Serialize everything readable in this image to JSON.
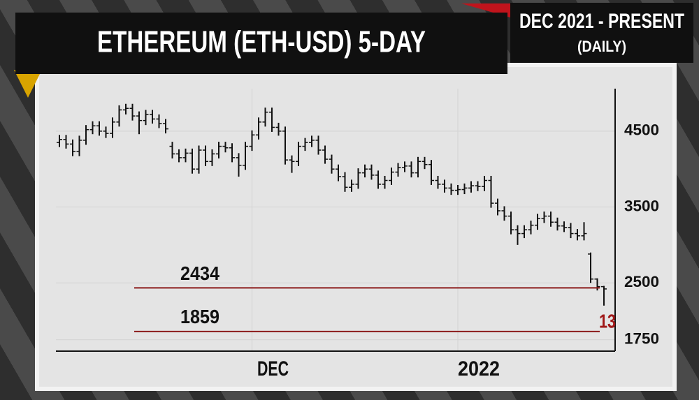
{
  "chart_data": {
    "type": "ohlc",
    "title": "ETHEREUM (ETH-USD) 5-DAY",
    "period": "DEC 2021 - PRESENT",
    "frequency": "(DAILY)",
    "categories": [
      null,
      null,
      null,
      null,
      null,
      null,
      null,
      null,
      null,
      null,
      null,
      null,
      null,
      null,
      null,
      null,
      null,
      null,
      null,
      null,
      null,
      null,
      null,
      null,
      null,
      null,
      null,
      null,
      null,
      "DEC",
      null,
      null,
      null,
      null,
      null,
      null,
      null,
      null,
      null,
      null,
      null,
      null,
      null,
      null,
      null,
      null,
      null,
      null,
      null,
      null,
      null,
      null,
      null,
      null,
      null,
      null,
      null,
      null,
      null,
      null,
      "2022",
      null,
      null,
      null,
      null,
      null,
      null,
      null,
      null,
      null,
      null,
      null,
      null,
      null,
      null,
      null,
      null,
      null,
      null,
      null,
      null,
      null,
      null
    ],
    "open": [
      4350,
      4390,
      4330,
      4230,
      4380,
      4520,
      4570,
      4500,
      4470,
      4620,
      4780,
      4800,
      4700,
      4640,
      4720,
      4660,
      4600,
      4300,
      4200,
      4150,
      4210,
      4000,
      4250,
      4100,
      4200,
      4300,
      4280,
      4150,
      4050,
      4300,
      4450,
      4620,
      4750,
      4550,
      4500,
      4120,
      4100,
      4300,
      4350,
      4380,
      4250,
      4130,
      4000,
      3900,
      3760,
      3800,
      3950,
      4000,
      3920,
      3800,
      3850,
      3960,
      4020,
      4040,
      3950,
      4100,
      4060,
      3850,
      3800,
      3750,
      3720,
      3730,
      3750,
      3780,
      3770,
      3850,
      3550,
      3450,
      3380,
      3200,
      3150,
      3200,
      3260,
      3350,
      3380,
      3300,
      3250,
      3230,
      3150,
      3120,
      2880,
      2550,
      2450
    ],
    "high": [
      4450,
      4450,
      4390,
      4440,
      4580,
      4630,
      4630,
      4560,
      4680,
      4840,
      4860,
      4860,
      4760,
      4780,
      4780,
      4720,
      4660,
      4360,
      4260,
      4270,
      4270,
      4310,
      4310,
      4260,
      4360,
      4360,
      4340,
      4210,
      4360,
      4510,
      4680,
      4810,
      4810,
      4610,
      4560,
      4180,
      4360,
      4410,
      4440,
      4440,
      4310,
      4190,
      4060,
      3960,
      3860,
      4010,
      4060,
      4060,
      3980,
      3910,
      4020,
      4080,
      4100,
      4100,
      4160,
      4160,
      4120,
      3910,
      3860,
      3810,
      3790,
      3810,
      3840,
      3840,
      3910,
      3910,
      3610,
      3510,
      3440,
      3260,
      3260,
      3320,
      3410,
      3440,
      3440,
      3360,
      3310,
      3290,
      3210,
      3300,
      2900,
      2560,
      2460
    ],
    "low": [
      4290,
      4270,
      4170,
      4170,
      4320,
      4460,
      4440,
      4410,
      4410,
      4560,
      4720,
      4640,
      4460,
      4580,
      4600,
      4540,
      4470,
      4140,
      4090,
      4090,
      3940,
      3940,
      4040,
      4040,
      4140,
      4220,
      4090,
      3900,
      3990,
      4240,
      4390,
      4560,
      4490,
      4440,
      4060,
      3950,
      4040,
      4240,
      4290,
      4190,
      4070,
      3940,
      3840,
      3700,
      3700,
      3740,
      3890,
      3860,
      3740,
      3740,
      3790,
      3900,
      3960,
      3890,
      3890,
      4000,
      3790,
      3740,
      3690,
      3660,
      3660,
      3670,
      3690,
      3710,
      3710,
      3490,
      3390,
      3320,
      3140,
      3000,
      3090,
      3140,
      3200,
      3290,
      3240,
      3190,
      3170,
      3090,
      3060,
      3060,
      2500,
      2400,
      2200
    ],
    "close": [
      4390,
      4330,
      4230,
      4380,
      4520,
      4570,
      4500,
      4470,
      4620,
      4780,
      4800,
      4700,
      4640,
      4720,
      4660,
      4600,
      4530,
      4200,
      4150,
      4210,
      4000,
      4250,
      4100,
      4200,
      4300,
      4280,
      4150,
      4050,
      4300,
      4450,
      4620,
      4750,
      4550,
      4500,
      4120,
      4100,
      4300,
      4350,
      4380,
      4250,
      4130,
      4000,
      3900,
      3760,
      3800,
      3950,
      4000,
      3920,
      3800,
      3850,
      3960,
      4020,
      4040,
      3950,
      4100,
      4060,
      3850,
      3800,
      3750,
      3720,
      3730,
      3750,
      3780,
      3770,
      3850,
      3550,
      3450,
      3380,
      3200,
      3150,
      3200,
      3260,
      3350,
      3380,
      3300,
      3250,
      3230,
      3150,
      3120,
      3150,
      2550,
      2450,
      2420
    ],
    "color": "#111111",
    "levels": [
      2434,
      1859
    ],
    "level_color": "#8b1a1a",
    "annotation": "13",
    "annotation_color": "#a01818",
    "ylim": [
      1600,
      5060
    ],
    "yticks": [
      1750,
      2500,
      3500,
      4500
    ],
    "grid": true
  }
}
